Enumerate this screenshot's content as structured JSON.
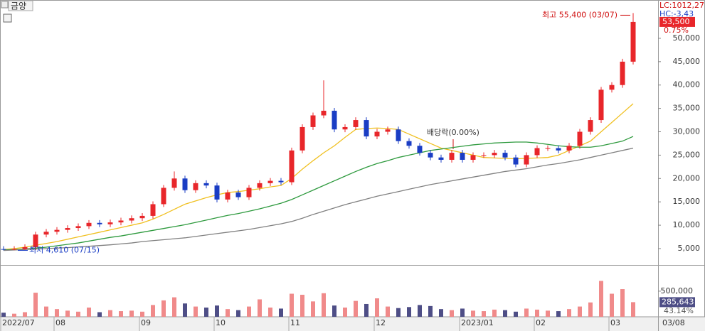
{
  "chart_data": {
    "type": "candlestick",
    "title": "금양",
    "lc_label": "LC:1012,27",
    "hc_label": "HC:-3,43",
    "high_note": "최고 55,400 (03/07)",
    "low_note": "최저 4,610 (07/15)",
    "dividend_note": "배당락(0.00%)",
    "last_date": "03/08",
    "current_price": {
      "value": 53500,
      "label": "53,500"
    },
    "change_pct": {
      "value": 0.75,
      "label": "0.75%"
    },
    "current_volume": {
      "value": 285643,
      "label": "285,643"
    },
    "volume_pct": {
      "value": 43.14,
      "label": "43.14%"
    },
    "up_color": "#e8262a",
    "down_color": "#1a3dc4",
    "volume_up_color": "#f08a8a",
    "volume_down_color": "#4e4e86",
    "grid": false,
    "categories": [
      "2022/07",
      null,
      null,
      null,
      null,
      "08",
      null,
      null,
      null,
      null,
      null,
      null,
      null,
      "09",
      null,
      null,
      null,
      null,
      null,
      null,
      "10",
      null,
      null,
      null,
      null,
      null,
      null,
      "11",
      null,
      null,
      null,
      null,
      null,
      null,
      null,
      "12",
      null,
      null,
      null,
      null,
      null,
      null,
      null,
      "2023/01",
      null,
      null,
      null,
      null,
      null,
      null,
      "02",
      null,
      null,
      null,
      null,
      null,
      null,
      "03",
      null,
      null
    ],
    "open": [
      4900,
      4800,
      4900,
      5300,
      8000,
      8600,
      9000,
      9400,
      9800,
      10500,
      10200,
      10600,
      11000,
      11500,
      12000,
      14500,
      18000,
      20000,
      17500,
      19000,
      18500,
      15500,
      17000,
      16000,
      18000,
      19000,
      19500,
      19200,
      26000,
      31000,
      33500,
      34500,
      30500,
      31000,
      32500,
      29000,
      30000,
      30500,
      28000,
      27000,
      25500,
      24500,
      24000,
      25500,
      24000,
      25000,
      25000,
      25500,
      24500,
      23000,
      25000,
      26500,
      26500,
      26000,
      27000,
      30000,
      32500,
      39000,
      40000,
      45000
    ],
    "high": [
      5500,
      5500,
      5900,
      8600,
      9200,
      9600,
      10000,
      10400,
      11100,
      11100,
      11200,
      11600,
      12100,
      12600,
      15100,
      18600,
      21500,
      20600,
      19600,
      19600,
      19100,
      17600,
      17600,
      18600,
      19600,
      20100,
      20100,
      26600,
      31600,
      34100,
      41000,
      35100,
      31600,
      33100,
      33100,
      30600,
      31100,
      31100,
      28600,
      27600,
      26100,
      25100,
      26100,
      26100,
      25600,
      25600,
      26100,
      26100,
      25100,
      25600,
      27100,
      27100,
      27100,
      27600,
      30600,
      33100,
      39600,
      40600,
      45600,
      55400
    ],
    "low": [
      4610,
      4650,
      4700,
      4700,
      7400,
      8000,
      8400,
      8800,
      9200,
      9600,
      9600,
      10000,
      10400,
      10900,
      11400,
      13900,
      17400,
      16900,
      16900,
      17900,
      14900,
      14900,
      15400,
      15400,
      17400,
      18400,
      18600,
      18600,
      25400,
      30400,
      32900,
      29900,
      29900,
      30400,
      28400,
      28400,
      29400,
      27400,
      26400,
      24900,
      23900,
      23400,
      23400,
      23400,
      23400,
      24400,
      24400,
      23900,
      22400,
      22400,
      24400,
      25900,
      25400,
      25400,
      26400,
      29400,
      31900,
      38400,
      39400,
      44400
    ],
    "close": [
      4800,
      4900,
      5300,
      8000,
      8600,
      9000,
      9400,
      9800,
      10500,
      10200,
      10600,
      11000,
      11500,
      12000,
      14500,
      18000,
      20000,
      17500,
      19000,
      18500,
      15500,
      17000,
      16000,
      18000,
      19000,
      19500,
      19200,
      26000,
      31000,
      33500,
      34500,
      30500,
      31000,
      32500,
      29000,
      30000,
      30500,
      28000,
      27000,
      25500,
      24500,
      24000,
      25500,
      24000,
      25000,
      25000,
      25500,
      24500,
      23000,
      25000,
      26500,
      26500,
      26000,
      27000,
      30000,
      32500,
      39000,
      40000,
      45000,
      53500
    ],
    "volume": [
      80000,
      60000,
      90000,
      470000,
      200000,
      150000,
      120000,
      100000,
      180000,
      90000,
      130000,
      110000,
      120000,
      100000,
      230000,
      320000,
      380000,
      260000,
      200000,
      180000,
      220000,
      150000,
      130000,
      200000,
      340000,
      180000,
      160000,
      450000,
      430000,
      300000,
      460000,
      220000,
      180000,
      310000,
      250000,
      360000,
      200000,
      170000,
      190000,
      230000,
      210000,
      150000,
      130000,
      160000,
      120000,
      110000,
      140000,
      130000,
      100000,
      160000,
      140000,
      120000,
      110000,
      150000,
      200000,
      280000,
      700000,
      450000,
      540000,
      285643
    ],
    "lines": [
      {
        "color": "#f0c020",
        "values": [
          4800,
          5000,
          5300,
          5700,
          6100,
          6500,
          7000,
          7500,
          8000,
          8500,
          9000,
          9500,
          10000,
          10500,
          11300,
          12300,
          13400,
          14500,
          15200,
          15900,
          16500,
          17000,
          17200,
          17500,
          17800,
          18200,
          18500,
          20000,
          22000,
          23800,
          25500,
          27000,
          28800,
          30500,
          30700,
          30800,
          30700,
          30500,
          29500,
          28500,
          27500,
          26500,
          26000,
          25500,
          25000,
          24500,
          24400,
          24300,
          24200,
          24300,
          24400,
          24500,
          25000,
          26000,
          27000,
          28000,
          30000,
          32000,
          34000,
          36000
        ]
      },
      {
        "color": "#2e9a3e",
        "values": [
          4700,
          4800,
          4900,
          5100,
          5300,
          5600,
          5900,
          6200,
          6600,
          7000,
          7400,
          7700,
          8100,
          8500,
          8900,
          9300,
          9700,
          10100,
          10600,
          11100,
          11600,
          12100,
          12500,
          13000,
          13500,
          14100,
          14700,
          15500,
          16500,
          17500,
          18500,
          19500,
          20500,
          21500,
          22400,
          23200,
          23800,
          24500,
          25000,
          25500,
          26000,
          26300,
          26600,
          26900,
          27200,
          27400,
          27600,
          27700,
          27800,
          27800,
          27600,
          27300,
          27000,
          26800,
          26700,
          26700,
          27000,
          27500,
          28000,
          29000
        ]
      },
      {
        "color": "#808080",
        "values": [
          4600,
          4700,
          4800,
          4900,
          5000,
          5100,
          5200,
          5350,
          5500,
          5650,
          5800,
          6000,
          6200,
          6500,
          6700,
          6900,
          7100,
          7300,
          7600,
          7900,
          8200,
          8500,
          8800,
          9100,
          9500,
          9900,
          10300,
          10800,
          11500,
          12300,
          13000,
          13700,
          14400,
          15000,
          15600,
          16200,
          16700,
          17200,
          17700,
          18200,
          18700,
          19100,
          19500,
          19900,
          20300,
          20700,
          21100,
          21500,
          21800,
          22100,
          22500,
          22900,
          23200,
          23600,
          24000,
          24500,
          25000,
          25500,
          26000,
          26500
        ]
      }
    ],
    "ylim": [
      1650,
      58200
    ],
    "yticks": [
      {
        "value": 5000,
        "label": "5,000"
      },
      {
        "value": 10000,
        "label": "10,000"
      },
      {
        "value": 15000,
        "label": "15,000"
      },
      {
        "value": 20000,
        "label": "20,000"
      },
      {
        "value": 25000,
        "label": "25,000"
      },
      {
        "value": 30000,
        "label": "30,000"
      },
      {
        "value": 35000,
        "label": "35,000"
      },
      {
        "value": 40000,
        "label": "40,000"
      },
      {
        "value": 45000,
        "label": "45,000"
      },
      {
        "value": 50000,
        "label": "50,000"
      }
    ],
    "vlim": [
      0,
      970000
    ],
    "vticks": [
      {
        "value": 500000,
        "label": "500,000"
      }
    ]
  }
}
